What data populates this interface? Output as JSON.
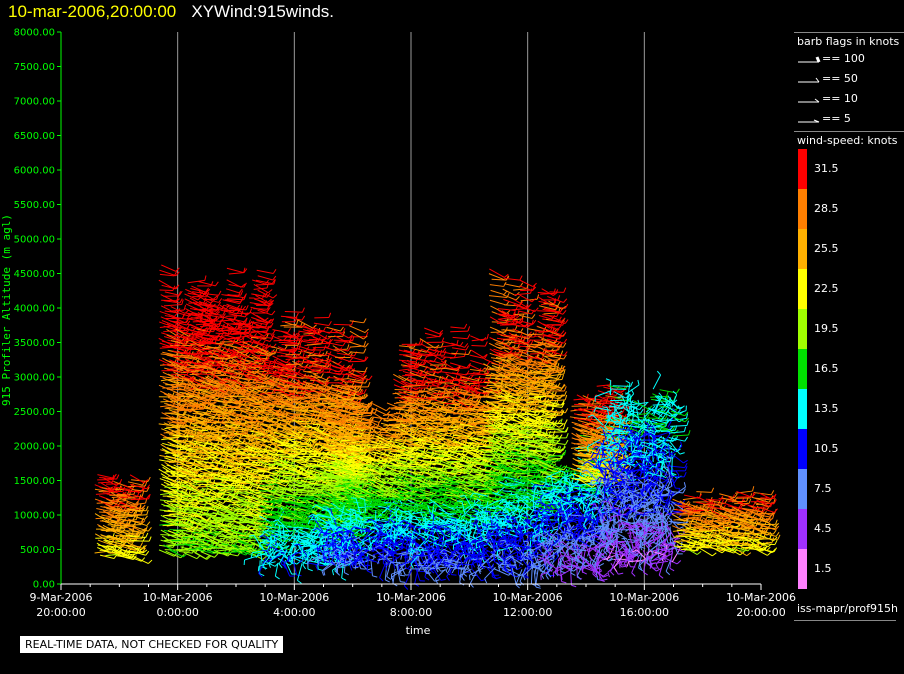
{
  "header": {
    "date_label": "10-mar-2006,20:00:00",
    "title": "XYWind:915winds."
  },
  "quality_notice": "REAL-TIME DATA, NOT CHECKED FOR QUALITY",
  "legend": {
    "barb_title": "barb flags in knots",
    "barbs": [
      {
        "label": "== 100"
      },
      {
        "label": "== 50"
      },
      {
        "label": "== 10"
      },
      {
        "label": "== 5"
      }
    ],
    "speed_title": "wind-speed: knots",
    "speed_scale": [
      {
        "label": "31.5",
        "color": "#ff0000"
      },
      {
        "label": "28.5",
        "color": "#ff7f00"
      },
      {
        "label": "25.5",
        "color": "#ffb000"
      },
      {
        "label": "22.5",
        "color": "#ffff00"
      },
      {
        "label": "19.5",
        "color": "#a0ff00"
      },
      {
        "label": "16.5",
        "color": "#00e000"
      },
      {
        "label": "13.5",
        "color": "#00ffff"
      },
      {
        "label": "10.5",
        "color": "#0000ff"
      },
      {
        "label": "7.5",
        "color": "#6090ff"
      },
      {
        "label": "4.5",
        "color": "#a030ff"
      },
      {
        "label": "1.5",
        "color": "#ff80ff"
      }
    ],
    "source_label": "iss-mapr/prof915h"
  },
  "chart_data": {
    "type": "scatter",
    "xlabel": "time",
    "ylabel": "915 Profiler Altitude (m agl)",
    "ylim": [
      0,
      8000
    ],
    "xlim_hours": [
      0,
      24
    ],
    "yticks": [
      "0.00",
      "500.00",
      "1000.00",
      "1500.00",
      "2000.00",
      "2500.00",
      "3000.00",
      "3500.00",
      "4000.00",
      "4500.00",
      "5000.00",
      "5500.00",
      "6000.00",
      "6500.00",
      "7000.00",
      "7500.00",
      "8000.00"
    ],
    "xticks": [
      {
        "h": 0,
        "line1": "9-Mar-2006",
        "line2": "20:00:00"
      },
      {
        "h": 4,
        "line1": "10-Mar-2006",
        "line2": "0:00:00"
      },
      {
        "h": 8,
        "line1": "10-Mar-2006",
        "line2": "4:00:00"
      },
      {
        "h": 12,
        "line1": "10-Mar-2006",
        "line2": "8:00:00"
      },
      {
        "h": 16,
        "line1": "10-Mar-2006",
        "line2": "12:00:00"
      },
      {
        "h": 20,
        "line1": "10-Mar-2006",
        "line2": "16:00:00"
      },
      {
        "h": 24,
        "line1": "10-Mar-2006",
        "line2": "20:00:00"
      }
    ],
    "grid": "vertical-at-major-ticks",
    "profiles": [
      {
        "start_h": 1.2,
        "end_h": 2.5,
        "top_m": 1700,
        "base_m": 400,
        "low_kt": 22,
        "high_kt": 31
      },
      {
        "start_h": 3.4,
        "end_h": 6.8,
        "top_m": 4700,
        "base_m": 450,
        "low_kt": 18,
        "high_kt": 32
      },
      {
        "start_h": 6.8,
        "end_h": 10.0,
        "top_m": 4000,
        "base_m": 300,
        "low_kt": 12,
        "high_kt": 31
      },
      {
        "start_h": 9.0,
        "end_h": 11.4,
        "top_m": 3000,
        "base_m": 300,
        "low_kt": 8,
        "high_kt": 28
      },
      {
        "start_h": 11.4,
        "end_h": 14.5,
        "top_m": 3800,
        "base_m": 200,
        "low_kt": 8,
        "high_kt": 31
      },
      {
        "start_h": 14.5,
        "end_h": 16.8,
        "top_m": 4700,
        "base_m": 200,
        "low_kt": 8,
        "high_kt": 31
      },
      {
        "start_h": 16.8,
        "end_h": 18.5,
        "top_m": 2200,
        "base_m": 200,
        "low_kt": 5,
        "high_kt": 16
      },
      {
        "start_h": 17.5,
        "end_h": 19.0,
        "top_m": 2900,
        "base_m": 1500,
        "low_kt": 22,
        "high_kt": 31
      },
      {
        "start_h": 18.5,
        "end_h": 21.0,
        "top_m": 2900,
        "base_m": 300,
        "low_kt": 4,
        "high_kt": 14
      },
      {
        "start_h": 21.0,
        "end_h": 24.0,
        "top_m": 1400,
        "base_m": 500,
        "low_kt": 22,
        "high_kt": 30
      }
    ]
  }
}
